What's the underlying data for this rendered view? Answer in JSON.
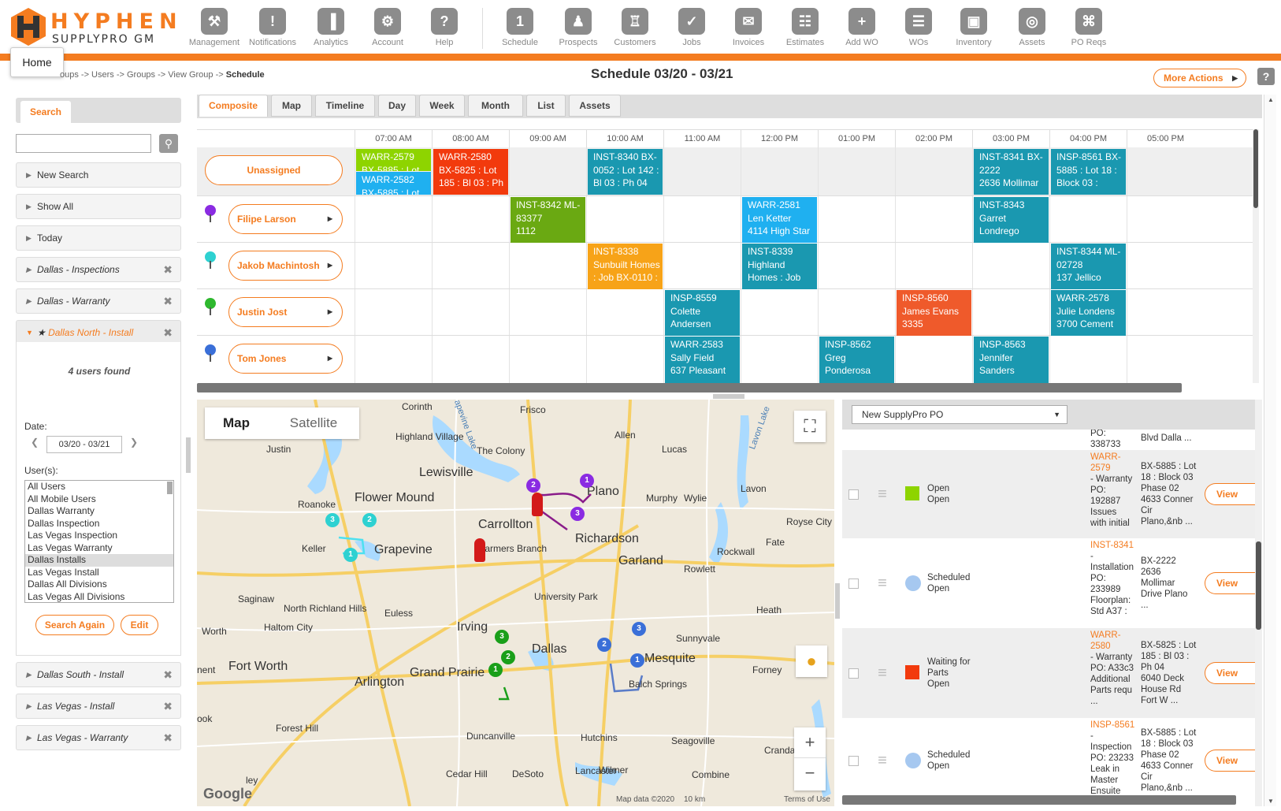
{
  "brand": {
    "name_top": "HYPHEN",
    "name_bottom": "SUPPLYPRO GM"
  },
  "nav": [
    {
      "label": "Management",
      "icon": "tools-icon"
    },
    {
      "label": "Notifications",
      "icon": "alert-icon"
    },
    {
      "label": "Analytics",
      "icon": "bar-chart-icon"
    },
    {
      "label": "Account",
      "icon": "gears-icon"
    },
    {
      "label": "Help",
      "icon": "question-icon"
    },
    {
      "label": "Schedule",
      "icon": "calendar-icon"
    },
    {
      "label": "Prospects",
      "icon": "prospect-icon"
    },
    {
      "label": "Customers",
      "icon": "customers-icon"
    },
    {
      "label": "Jobs",
      "icon": "clipboard-check-icon"
    },
    {
      "label": "Invoices",
      "icon": "invoice-icon"
    },
    {
      "label": "Estimates",
      "icon": "calculator-icon"
    },
    {
      "label": "Add WO",
      "icon": "add-wo-icon"
    },
    {
      "label": "WOs",
      "icon": "wos-icon"
    },
    {
      "label": "Inventory",
      "icon": "box-icon"
    },
    {
      "label": "Assets",
      "icon": "coins-icon"
    },
    {
      "label": "PO Reqs",
      "icon": "po-reqs-icon"
    }
  ],
  "tooltip": {
    "home": "Home"
  },
  "breadcrumb": {
    "trail": "oups -> Users -> Groups -> View Group ->",
    "current": "Schedule"
  },
  "header": {
    "title": "Schedule  03/20 - 03/21",
    "more_actions": "More Actions",
    "help": "?"
  },
  "left": {
    "search_tab": "Search",
    "search_placeholder": "",
    "items": {
      "new_search": "New Search",
      "show_all": "Show All",
      "today": "Today",
      "dallas_inspections": "Dallas - Inspections",
      "dallas_warranty": "Dallas - Warranty",
      "dallas_north_install": "Dallas North - Install",
      "dallas_south_install": "Dallas South - Install",
      "las_vegas_install": "Las Vegas - Install",
      "las_vegas_warranty": "Las Vegas - Warranty"
    },
    "found": "4 users found",
    "date_label": "Date:",
    "date_value": "03/20 - 03/21",
    "users_label": "User(s):",
    "users": [
      "All Users",
      "All Mobile Users",
      "Dallas Warranty",
      "Dallas Inspection",
      "Las Vegas Inspection",
      "Las Vegas Warranty",
      "Dallas Installs",
      "Las Vegas Install",
      "Dallas All Divisions",
      "Las Vegas All Divisions"
    ],
    "selected_user": "Dallas Installs",
    "search_again": "Search Again",
    "edit": "Edit"
  },
  "tabs": [
    "Composite",
    "Map",
    "Timeline",
    "Day",
    "Week",
    "Month",
    "List",
    "Assets"
  ],
  "times": [
    "07:00 AM",
    "08:00 AM",
    "09:00 AM",
    "10:00 AM",
    "11:00 AM",
    "12:00 PM",
    "01:00 PM",
    "02:00 PM",
    "03:00 PM",
    "04:00 PM",
    "05:00 PM"
  ],
  "resources": [
    "Unassigned",
    "Filipe Larson",
    "Jakob Machintosh",
    "Justin Jost",
    "Tom Jones"
  ],
  "pin_colors": [
    "#8a2be2",
    "#2ed1d1",
    "#2eb82e",
    "#3a6fd8"
  ],
  "events": {
    "e1": {
      "lines": [
        "WARR-2579",
        "BX-5885 : Lot"
      ],
      "color": "#8ed400"
    },
    "e2": {
      "lines": [
        "WARR-2582",
        "BX-5885 : Lot"
      ],
      "color": "#1fb0f0"
    },
    "e3": {
      "lines": [
        "WARR-2580",
        "BX-5825 : Lot",
        "185 : Bl 03 : Ph"
      ],
      "color": "#f23a0d"
    },
    "e4": {
      "lines": [
        "INST-8340 BX-",
        "0052 : Lot 142 :",
        "Bl 03 : Ph 04"
      ],
      "color": "#1a98b0"
    },
    "e5": {
      "lines": [
        "INST-8341 BX-",
        "2222",
        "2636 Mollimar"
      ],
      "color": "#1a98b0"
    },
    "e6": {
      "lines": [
        "INSP-8561 BX-",
        "5885 : Lot 18 :",
        "Block 03 :"
      ],
      "color": "#1a98b0"
    },
    "e7": {
      "lines": [
        "INST-8342 ML-",
        "83377",
        "1112"
      ],
      "color": "#6aa912"
    },
    "e8": {
      "lines": [
        "WARR-2581",
        "Len Ketter",
        "4114 High Star"
      ],
      "color": "#1fb0f0"
    },
    "e9": {
      "lines": [
        "INST-8343",
        "Garret",
        "Londrego"
      ],
      "color": "#1a98b0"
    },
    "e10": {
      "lines": [
        "INST-8338",
        "Sunbuilt Homes",
        ": Job BX-0110 :"
      ],
      "color": "#f7a318"
    },
    "e11": {
      "lines": [
        "INST-8339",
        "Highland",
        "Homes : Job"
      ],
      "color": "#1a98b0"
    },
    "e12": {
      "lines": [
        "INST-8344 ML-",
        "02728",
        "137 Jellico"
      ],
      "color": "#1a98b0"
    },
    "e13": {
      "lines": [
        "INSP-8559",
        "Colette",
        "Andersen"
      ],
      "color": "#1a98b0"
    },
    "e14": {
      "lines": [
        "INSP-8560",
        "James Evans",
        "3335"
      ],
      "color": "#ef5a2b"
    },
    "e15": {
      "lines": [
        "WARR-2578",
        "Julie Londens",
        "3700 Cement"
      ],
      "color": "#1a98b0"
    },
    "e16": {
      "lines": [
        "WARR-2583",
        "Sally Field",
        "637 Pleasant"
      ],
      "color": "#1a98b0"
    },
    "e17": {
      "lines": [
        "INSP-8562",
        "Greg",
        "Ponderosa"
      ],
      "color": "#1a98b0"
    },
    "e18": {
      "lines": [
        "INSP-8563",
        "Jennifer",
        "Sanders"
      ],
      "color": "#1a98b0"
    }
  },
  "map": {
    "tab_map": "Map",
    "tab_satellite": "Satellite",
    "labels": [
      "Corinth",
      "Frisco",
      "Highland Village",
      "The Colony",
      "Allen",
      "Lucas",
      "Justin",
      "Lewisville",
      "Flower Mound",
      "Roanoke",
      "Plano",
      "Murphy",
      "Wylie",
      "Lavon",
      "Carrollton",
      "Keller",
      "Grapevine",
      "Farmers Branch",
      "Richardson",
      "Garland",
      "Rowlett",
      "Rockwall",
      "Fate",
      "Royse City",
      "University Park",
      "Saginaw",
      "North Richland Hills",
      "Euless",
      "Haltom City",
      "Irving",
      "Heath",
      "Fort Worth",
      "Arlington",
      "Grand Prairie",
      "Dallas",
      "Mesquite",
      "Sunnyvale",
      "Forney",
      "Balch Springs",
      "Forest Hill",
      "Duncanville",
      "Hutchins",
      "Seagoville",
      "Crandall",
      "Cedar Hill",
      "DeSoto",
      "Lancaster",
      "Wilmer",
      "Combine",
      "Worth",
      "ley",
      "ook",
      "nent"
    ],
    "lake_labels": [
      "Lavon Lake",
      "Grapevine Lake"
    ],
    "footer": {
      "data": "Map data ©2020",
      "scale": "10 km",
      "terms": "Terms of Use",
      "google": "Google"
    }
  },
  "right": {
    "select_value": "New SupplyPro PO",
    "top_partial": {
      "id": "PO:",
      "num": "338733",
      "addr": "Blvd  Dalla ..."
    },
    "rows": [
      {
        "status": [
          "Open",
          "Open"
        ],
        "swatch": "#8ed400",
        "shape": "square",
        "id": "WARR-2579",
        "desc": [
          "- Warranty",
          "PO:",
          "192887",
          "Issues",
          "with initial"
        ],
        "addr": [
          "BX-5885 : Lot",
          "18 : Block 03",
          "Phase 02",
          "4633 Conner",
          "Cir",
          "Plano,&nb ..."
        ],
        "view": "View"
      },
      {
        "status": [
          "Scheduled",
          "Open"
        ],
        "swatch": "#a6c8f0",
        "shape": "circle",
        "id": "INST-8341",
        "desc": [
          "-",
          "Installation",
          "PO:",
          "233989",
          "Floorplan:",
          "Std A37 :"
        ],
        "addr": [
          "BX-2222",
          "2636",
          "Mollimar",
          "Drive  Plano",
          "..."
        ],
        "view": "View"
      },
      {
        "status": [
          "Waiting for",
          "Parts",
          "Open"
        ],
        "swatch": "#f23a0d",
        "shape": "square",
        "id": "WARR-2580",
        "desc": [
          "- Warranty",
          "PO: A33c3",
          "Additional",
          "Parts requ",
          "..."
        ],
        "addr": [
          "BX-5825 : Lot",
          "185 : Bl 03 :",
          "Ph 04",
          "6040 Deck",
          "House Rd",
          "Fort W ..."
        ],
        "view": "View"
      },
      {
        "status": [
          "Scheduled",
          "Open"
        ],
        "swatch": "#a6c8f0",
        "shape": "circle",
        "id": "INSP-8561",
        "desc": [
          "-",
          "Inspection",
          "PO: 23233",
          "Leak in",
          "Master",
          "Ensuite"
        ],
        "addr": [
          "BX-5885 : Lot",
          "18 : Block 03",
          "Phase 02",
          "4633 Conner",
          "Cir",
          "Plano,&nb ..."
        ],
        "view": "View"
      }
    ]
  }
}
